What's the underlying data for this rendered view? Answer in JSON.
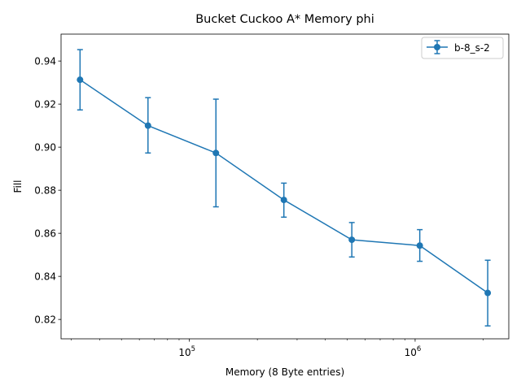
{
  "chart_data": {
    "type": "line",
    "title": "Bucket Cuckoo A* Memory phi",
    "xlabel": "Memory (8 Byte entries)",
    "ylabel": "Fill",
    "x_scale": "log",
    "xlim": [
      27000,
      2600000
    ],
    "ylim": [
      0.811,
      0.9525
    ],
    "x_ticks": [
      {
        "value": 100000,
        "base": "10",
        "exp": "5"
      },
      {
        "value": 1000000,
        "base": "10",
        "exp": "6"
      }
    ],
    "y_ticks": [
      "0.82",
      "0.84",
      "0.86",
      "0.88",
      "0.90",
      "0.92",
      "0.94"
    ],
    "legend_position": "upper right",
    "grid": false,
    "color": "#1f77b4",
    "series": [
      {
        "name": "b-8_s-2",
        "x": [
          32768,
          65536,
          131072,
          262144,
          524288,
          1048576,
          2097152
        ],
        "y": [
          0.9313,
          0.91,
          0.8973,
          0.8755,
          0.857,
          0.8543,
          0.8323
        ],
        "yerr_low": [
          0.9173,
          0.8973,
          0.8723,
          0.8675,
          0.849,
          0.847,
          0.817
        ],
        "yerr_high": [
          0.9453,
          0.923,
          0.9223,
          0.8833,
          0.865,
          0.8617,
          0.8475
        ]
      }
    ]
  }
}
